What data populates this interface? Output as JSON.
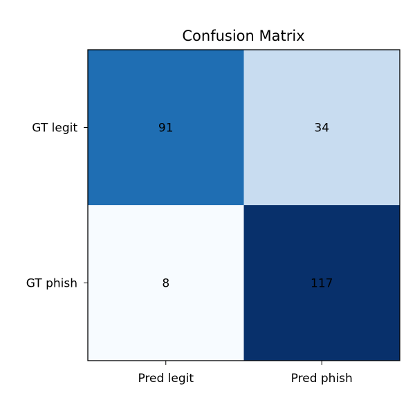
{
  "chart_data": {
    "type": "heatmap",
    "title": "Confusion Matrix",
    "xlabel": "",
    "ylabel": "",
    "x_categories": [
      "Pred legit",
      "Pred phish"
    ],
    "y_categories": [
      "GT legit",
      "GT phish"
    ],
    "values": [
      [
        91,
        34
      ],
      [
        8,
        117
      ]
    ],
    "colormap": "Blues",
    "value_range": [
      8,
      117
    ],
    "grid": false,
    "cell_colors": [
      [
        "#1f6eb3",
        "#c8dcf0"
      ],
      [
        "#f7fbff",
        "#08306b"
      ]
    ],
    "cell_text_color": "#000000"
  }
}
